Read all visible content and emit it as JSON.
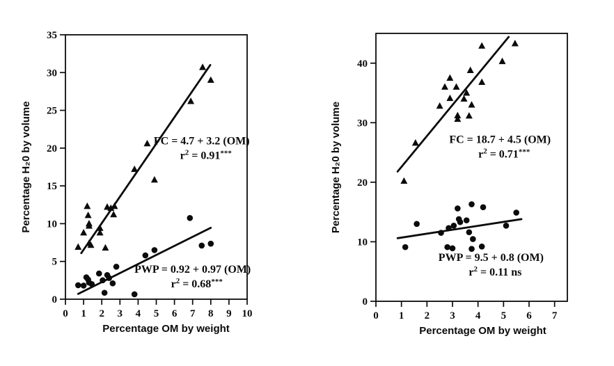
{
  "figure": {
    "background": "#ffffff",
    "ink_color": "#0b0b0b"
  },
  "chart_data": [
    {
      "type": "scatter",
      "title": "",
      "xlabel": "Percentage OM by weight",
      "ylabel": "Percentage H₂0 by volume",
      "xlim": [
        0,
        10
      ],
      "ylim": [
        0,
        35
      ],
      "xticks": [
        0,
        1,
        2,
        3,
        4,
        5,
        6,
        7,
        8,
        9,
        10
      ],
      "yticks": [
        0,
        5,
        10,
        15,
        20,
        25,
        30,
        35
      ],
      "grid": false,
      "legend": "none (equations annotated inside plot)",
      "series": [
        {
          "name": "FC",
          "marker": "triangle",
          "points": [
            [
              0.7,
              6.9
            ],
            [
              1.0,
              8.8
            ],
            [
              1.2,
              12.3
            ],
            [
              1.25,
              11.1
            ],
            [
              1.3,
              10.0
            ],
            [
              1.3,
              9.7
            ],
            [
              1.3,
              7.4
            ],
            [
              1.4,
              7.15
            ],
            [
              1.9,
              9.4
            ],
            [
              1.9,
              8.8
            ],
            [
              2.2,
              6.8
            ],
            [
              2.3,
              12.2
            ],
            [
              2.5,
              12.05
            ],
            [
              2.65,
              11.2
            ],
            [
              2.7,
              12.3
            ],
            [
              3.8,
              17.2
            ],
            [
              4.5,
              20.6
            ],
            [
              4.9,
              15.8
            ],
            [
              6.9,
              26.2
            ],
            [
              7.55,
              30.7
            ],
            [
              8.0,
              29.0
            ]
          ],
          "line": [
            [
              0.87,
              6.1
            ],
            [
              7.97,
              31.0
            ]
          ],
          "label": {
            "equation": "FC = 4.7 + 3.2 (OM)",
            "r": "r",
            "r_sup": "2",
            "r_eq": " = 0.91",
            "stars": "***",
            "suffix": "",
            "x": 7.5,
            "y": 20.5
          }
        },
        {
          "name": "PWP",
          "marker": "circle",
          "points": [
            [
              0.7,
              1.85
            ],
            [
              1.0,
              1.8
            ],
            [
              1.15,
              2.9
            ],
            [
              1.25,
              2.6
            ],
            [
              1.3,
              2.2
            ],
            [
              1.45,
              2.0
            ],
            [
              1.85,
              3.4
            ],
            [
              2.05,
              2.5
            ],
            [
              2.15,
              0.85
            ],
            [
              2.3,
              3.2
            ],
            [
              2.4,
              2.8
            ],
            [
              2.6,
              2.1
            ],
            [
              2.8,
              4.3
            ],
            [
              3.8,
              0.65
            ],
            [
              4.4,
              5.8
            ],
            [
              4.9,
              6.5
            ],
            [
              6.85,
              10.75
            ],
            [
              7.5,
              7.1
            ],
            [
              8.0,
              7.35
            ]
          ],
          "line": [
            [
              0.7,
              0.7
            ],
            [
              8.0,
              9.45
            ]
          ],
          "label": {
            "equation": "PWP = 0.92 + 0.97 (OM)",
            "r": "r",
            "r_sup": "2",
            "r_eq": " = 0.68",
            "stars": "***",
            "suffix": "",
            "x": 7.0,
            "y": 3.5
          }
        }
      ]
    },
    {
      "type": "scatter",
      "title": "",
      "xlabel": "Percentage OM by weight",
      "ylabel": "Percentage H₂0 by volume",
      "xlim": [
        0,
        7.5
      ],
      "ylim": [
        0,
        45
      ],
      "xticks": [
        0,
        1,
        2,
        3,
        4,
        5,
        6,
        7
      ],
      "yticks": [
        0,
        10,
        20,
        30,
        40
      ],
      "grid": false,
      "legend": "none (equations annotated inside plot)",
      "series": [
        {
          "name": "FC",
          "marker": "triangle",
          "points": [
            [
              1.1,
              20.2
            ],
            [
              1.55,
              26.6
            ],
            [
              2.5,
              32.8
            ],
            [
              2.7,
              36.0
            ],
            [
              2.9,
              37.5
            ],
            [
              2.9,
              34.1
            ],
            [
              3.15,
              36.0
            ],
            [
              3.2,
              31.2
            ],
            [
              3.2,
              30.6
            ],
            [
              3.45,
              34.0
            ],
            [
              3.55,
              35.0
            ],
            [
              3.65,
              31.15
            ],
            [
              3.7,
              38.8
            ],
            [
              3.75,
              33.0
            ],
            [
              4.15,
              42.9
            ],
            [
              4.15,
              36.8
            ],
            [
              4.95,
              40.3
            ],
            [
              5.45,
              43.3
            ]
          ],
          "line": [
            [
              0.85,
              21.8
            ],
            [
              5.2,
              44.4
            ]
          ],
          "label": {
            "equation": "FC = 18.7 + 4.5 (OM)",
            "r": "r",
            "r_sup": "2",
            "r_eq": " = 0.71",
            "stars": "***",
            "suffix": "",
            "x": 4.86,
            "y": 26.6
          }
        },
        {
          "name": "PWP",
          "marker": "circle",
          "points": [
            [
              1.15,
              9.1
            ],
            [
              1.6,
              13.0
            ],
            [
              2.55,
              11.5
            ],
            [
              2.8,
              9.1
            ],
            [
              2.85,
              12.3
            ],
            [
              3.0,
              8.9
            ],
            [
              3.05,
              12.7
            ],
            [
              3.2,
              15.6
            ],
            [
              3.25,
              13.8
            ],
            [
              3.3,
              13.3
            ],
            [
              3.55,
              13.6
            ],
            [
              3.65,
              11.6
            ],
            [
              3.75,
              16.3
            ],
            [
              3.75,
              8.8
            ],
            [
              3.8,
              10.45
            ],
            [
              4.15,
              9.2
            ],
            [
              4.2,
              15.8
            ],
            [
              5.1,
              12.7
            ],
            [
              5.5,
              14.9
            ]
          ],
          "line": [
            [
              0.85,
              10.6
            ],
            [
              5.7,
              13.8
            ]
          ],
          "label": {
            "equation": "PWP = 9.5 + 0.8 (OM)",
            "r": "r",
            "r_sup": "2",
            "r_eq": " = 0.11",
            "stars": "",
            "suffix": " ns",
            "x": 4.51,
            "y": 6.8
          }
        }
      ]
    }
  ]
}
